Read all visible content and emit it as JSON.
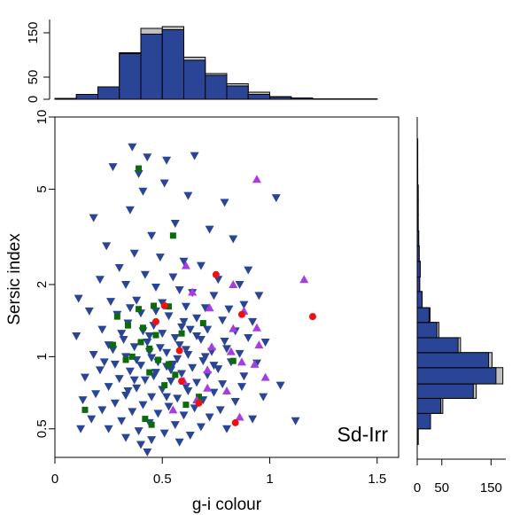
{
  "chart_data": {
    "type": "scatter",
    "panel_label": "Sd-Irr",
    "xlabel": "g-i colour",
    "ylabel": "Sersic index",
    "xlim": [
      0,
      1.6
    ],
    "ylim": [
      0.38,
      10
    ],
    "y_scale": "log",
    "x_ticks": [
      "0",
      "0.5",
      "1",
      "1.5"
    ],
    "x_tick_values": [
      0,
      0.5,
      1.0,
      1.5
    ],
    "y_ticks": [
      "0.5",
      "1",
      "2",
      "5",
      "10"
    ],
    "y_tick_values": [
      0.5,
      1,
      2,
      5,
      10
    ],
    "grid": false,
    "colors": {
      "blue": "#2b4596",
      "green": "#0b6b0b",
      "purple": "#a63de0",
      "red": "#ee1111",
      "hist_fill": "#2b4596",
      "hist_total": "#c0c0c0"
    },
    "series": [
      {
        "marker": "down-triangle",
        "color": "#2b4596",
        "points": [
          [
            0.36,
            7.5
          ],
          [
            0.43,
            6.8
          ],
          [
            0.27,
            6.2
          ],
          [
            0.52,
            6.6
          ],
          [
            0.65,
            6.9
          ],
          [
            0.39,
            5.8
          ],
          [
            0.51,
            5.3
          ],
          [
            0.41,
            4.9
          ],
          [
            0.62,
            4.7
          ],
          [
            0.79,
            4.4
          ],
          [
            1.03,
            4.6
          ],
          [
            0.35,
            4.1
          ],
          [
            0.18,
            3.8
          ],
          [
            0.56,
            3.6
          ],
          [
            0.72,
            3.4
          ],
          [
            0.45,
            3.2
          ],
          [
            0.83,
            3.1
          ],
          [
            0.24,
            2.9
          ],
          [
            0.37,
            2.7
          ],
          [
            0.49,
            2.6
          ],
          [
            0.6,
            2.5
          ],
          [
            0.68,
            2.4
          ],
          [
            0.9,
            2.3
          ],
          [
            0.3,
            2.35
          ],
          [
            0.42,
            2.2
          ],
          [
            0.55,
            2.15
          ],
          [
            0.76,
            2.1
          ],
          [
            0.86,
            2.0
          ],
          [
            0.21,
            2.1
          ],
          [
            0.33,
            2.0
          ],
          [
            0.47,
            1.95
          ],
          [
            0.58,
            1.9
          ],
          [
            0.64,
            1.85
          ],
          [
            0.74,
            1.8
          ],
          [
            0.95,
            1.8
          ],
          [
            0.11,
            1.75
          ],
          [
            0.26,
            1.7
          ],
          [
            0.38,
            1.72
          ],
          [
            0.5,
            1.68
          ],
          [
            0.61,
            1.62
          ],
          [
            0.7,
            1.6
          ],
          [
            0.81,
            1.58
          ],
          [
            0.88,
            1.65
          ],
          [
            0.16,
            1.55
          ],
          [
            0.29,
            1.5
          ],
          [
            0.4,
            1.52
          ],
          [
            0.53,
            1.48
          ],
          [
            0.66,
            1.45
          ],
          [
            0.78,
            1.42
          ],
          [
            0.92,
            1.4
          ],
          [
            0.34,
            1.38
          ],
          [
            0.46,
            1.35
          ],
          [
            0.59,
            1.33
          ],
          [
            0.71,
            1.3
          ],
          [
            0.84,
            1.28
          ],
          [
            0.22,
            1.3
          ],
          [
            0.1,
            1.22
          ],
          [
            0.31,
            1.25
          ],
          [
            0.44,
            1.22
          ],
          [
            0.56,
            1.2
          ],
          [
            0.68,
            1.18
          ],
          [
            0.79,
            1.16
          ],
          [
            0.98,
            1.15
          ],
          [
            0.25,
            1.12
          ],
          [
            0.37,
            1.1
          ],
          [
            0.49,
            1.09
          ],
          [
            0.61,
            1.07
          ],
          [
            0.73,
            1.05
          ],
          [
            0.86,
            1.03
          ],
          [
            0.18,
            1.02
          ],
          [
            0.33,
            1.0
          ],
          [
            0.45,
            0.99
          ],
          [
            0.57,
            0.98
          ],
          [
            0.69,
            0.96
          ],
          [
            0.82,
            0.95
          ],
          [
            0.94,
            0.94
          ],
          [
            0.28,
            0.93
          ],
          [
            0.4,
            0.92
          ],
          [
            0.52,
            0.91
          ],
          [
            0.64,
            0.9
          ],
          [
            0.76,
            0.89
          ],
          [
            0.21,
            0.88
          ],
          [
            0.35,
            0.87
          ],
          [
            0.47,
            0.86
          ],
          [
            0.59,
            0.85
          ],
          [
            0.71,
            0.84
          ],
          [
            0.88,
            0.83
          ],
          [
            0.14,
            0.82
          ],
          [
            0.3,
            0.81
          ],
          [
            0.42,
            0.8
          ],
          [
            0.54,
            0.79
          ],
          [
            0.66,
            0.78
          ],
          [
            0.78,
            0.77
          ],
          [
            1.05,
            0.76
          ],
          [
            0.25,
            0.75
          ],
          [
            0.38,
            0.74
          ],
          [
            0.5,
            0.73
          ],
          [
            0.62,
            0.72
          ],
          [
            0.74,
            0.71
          ],
          [
            0.19,
            0.7
          ],
          [
            0.33,
            0.69
          ],
          [
            0.45,
            0.68
          ],
          [
            0.57,
            0.67
          ],
          [
            0.69,
            0.66
          ],
          [
            0.84,
            0.65
          ],
          [
            0.13,
            0.66
          ],
          [
            0.28,
            0.64
          ],
          [
            0.41,
            0.63
          ],
          [
            0.53,
            0.62
          ],
          [
            0.65,
            0.61
          ],
          [
            0.77,
            0.6
          ],
          [
            0.22,
            0.6
          ],
          [
            0.36,
            0.59
          ],
          [
            0.48,
            0.58
          ],
          [
            0.6,
            0.57
          ],
          [
            0.72,
            0.56
          ],
          [
            0.17,
            0.55
          ],
          [
            0.31,
            0.54
          ],
          [
            0.44,
            0.53
          ],
          [
            0.56,
            0.52
          ],
          [
            0.68,
            0.51
          ],
          [
            0.25,
            0.5
          ],
          [
            0.39,
            0.49
          ],
          [
            0.51,
            0.48
          ],
          [
            0.63,
            0.47
          ],
          [
            0.33,
            0.46
          ],
          [
            0.45,
            0.45
          ],
          [
            0.58,
            0.44
          ],
          [
            0.4,
            0.43
          ],
          [
            0.43,
            0.4
          ],
          [
            0.12,
            0.5
          ],
          [
            0.92,
            0.55
          ],
          [
            1.12,
            0.54
          ],
          [
            0.8,
            0.5
          ],
          [
            0.35,
            1.6
          ],
          [
            0.47,
            1.55
          ],
          [
            0.6,
            1.4
          ],
          [
            0.32,
            1.18
          ],
          [
            0.43,
            1.15
          ],
          [
            0.52,
            1.04
          ],
          [
            0.62,
            1.02
          ],
          [
            0.38,
            0.97
          ],
          [
            0.48,
            0.95
          ],
          [
            0.55,
            0.93
          ],
          [
            0.44,
            1.05
          ],
          [
            0.58,
            1.12
          ],
          [
            0.5,
            1.25
          ],
          [
            0.41,
            1.28
          ],
          [
            0.63,
            1.3
          ],
          [
            0.54,
            0.88
          ],
          [
            0.46,
            0.83
          ],
          [
            0.37,
            0.8
          ],
          [
            0.61,
            0.75
          ],
          [
            0.7,
            1.0
          ],
          [
            0.66,
            1.22
          ],
          [
            0.27,
            1.07
          ],
          [
            0.23,
            0.95
          ],
          [
            0.34,
            0.72
          ],
          [
            0.52,
            0.68
          ],
          [
            0.74,
            0.92
          ],
          [
            0.8,
            1.08
          ],
          [
            0.9,
            1.2
          ],
          [
            0.87,
            0.75
          ],
          [
            0.97,
            0.68
          ]
        ]
      },
      {
        "marker": "square",
        "color": "#0b6b0b",
        "points": [
          [
            0.39,
            6.1
          ],
          [
            0.55,
            3.2
          ],
          [
            0.53,
            1.62
          ],
          [
            0.39,
            1.58
          ],
          [
            0.46,
            1.63
          ],
          [
            0.29,
            1.47
          ],
          [
            0.34,
            1.35
          ],
          [
            0.41,
            1.32
          ],
          [
            0.69,
            1.38
          ],
          [
            0.47,
            1.23
          ],
          [
            0.59,
            1.25
          ],
          [
            0.27,
            1.12
          ],
          [
            0.44,
            1.08
          ],
          [
            0.36,
            1.0
          ],
          [
            0.48,
            0.97
          ],
          [
            0.53,
            0.93
          ],
          [
            0.44,
            0.86
          ],
          [
            0.56,
            0.84
          ],
          [
            0.83,
            0.96
          ],
          [
            0.14,
            0.6
          ],
          [
            0.42,
            0.55
          ],
          [
            0.45,
            0.52
          ],
          [
            0.61,
            0.63
          ],
          [
            0.51,
            0.76
          ],
          [
            0.67,
            0.68
          ],
          [
            0.33,
            0.97
          ],
          [
            0.4,
            1.15
          ]
        ]
      },
      {
        "marker": "up-triangle",
        "color": "#a63de0",
        "points": [
          [
            0.94,
            5.5
          ],
          [
            0.61,
            2.4
          ],
          [
            0.83,
            2.0
          ],
          [
            1.16,
            2.1
          ],
          [
            0.64,
            1.86
          ],
          [
            0.72,
            1.6
          ],
          [
            0.88,
            1.55
          ],
          [
            0.83,
            1.31
          ],
          [
            0.94,
            1.32
          ],
          [
            0.73,
            1.1
          ],
          [
            0.82,
            1.05
          ],
          [
            0.93,
            0.93
          ],
          [
            0.71,
            0.88
          ],
          [
            0.98,
            0.82
          ],
          [
            0.8,
            0.72
          ],
          [
            0.66,
            0.66
          ],
          [
            0.86,
            0.56
          ],
          [
            0.6,
            0.79
          ],
          [
            0.71,
            0.74
          ],
          [
            0.87,
            0.95
          ],
          [
            0.95,
            1.12
          ],
          [
            0.55,
            0.6
          ]
        ]
      },
      {
        "marker": "circle",
        "color": "#ee1111",
        "points": [
          [
            0.75,
            2.2
          ],
          [
            0.87,
            1.5
          ],
          [
            1.2,
            1.47
          ],
          [
            0.51,
            1.63
          ],
          [
            0.47,
            1.4
          ],
          [
            0.58,
            1.06
          ],
          [
            0.59,
            0.79
          ],
          [
            0.67,
            0.64
          ],
          [
            0.84,
            0.53
          ]
        ]
      }
    ],
    "top_histogram": {
      "y_ticks": [
        "0",
        "50",
        "150"
      ],
      "y_tick_values": [
        0,
        50,
        150
      ],
      "ylim": [
        0,
        180
      ],
      "bin_edges": [
        0.0,
        0.1,
        0.2,
        0.3,
        0.4,
        0.5,
        0.6,
        0.7,
        0.8,
        0.9,
        1.0,
        1.1,
        1.2,
        1.3,
        1.4,
        1.5,
        1.6
      ],
      "counts_selected": [
        2,
        11,
        28,
        103,
        147,
        157,
        88,
        54,
        30,
        11,
        5,
        3,
        1,
        1,
        1,
        0
      ],
      "counts_total": [
        2,
        11,
        28,
        105,
        160,
        164,
        95,
        58,
        35,
        16,
        6,
        3,
        1,
        1,
        1,
        0
      ]
    },
    "right_histogram": {
      "x_ticks": [
        "0",
        "50",
        "150"
      ],
      "x_tick_values": [
        0,
        50,
        150
      ],
      "xlim": [
        0,
        180
      ],
      "bin_edges": [
        0.38,
        0.43,
        0.5,
        0.58,
        0.67,
        0.77,
        0.9,
        1.04,
        1.2,
        1.39,
        1.6,
        1.87,
        2.15,
        2.5,
        2.9,
        3.35,
        3.9,
        4.5,
        5.2,
        6.05,
        7.0,
        8.1,
        10.0
      ],
      "counts_selected": [
        0,
        2,
        27,
        48,
        114,
        160,
        145,
        83,
        40,
        24,
        10,
        5,
        6,
        4,
        3,
        2,
        2,
        2,
        1,
        1,
        1,
        0
      ],
      "counts_total": [
        0,
        2,
        27,
        52,
        120,
        174,
        152,
        88,
        44,
        26,
        10,
        5,
        6,
        4,
        3,
        2,
        2,
        2,
        1,
        1,
        1,
        0
      ]
    }
  }
}
